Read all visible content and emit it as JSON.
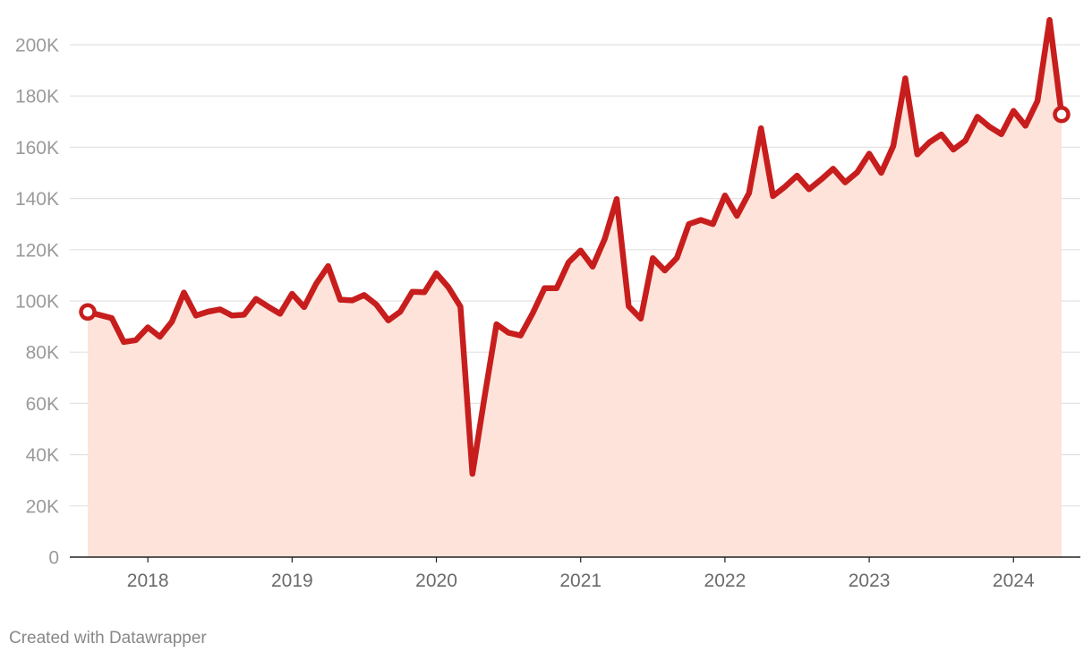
{
  "chart_data": {
    "type": "area",
    "title": "",
    "xlabel": "",
    "ylabel": "",
    "ylim": [
      0,
      200000
    ],
    "y_ticks": [
      {
        "value": 0,
        "label": "0"
      },
      {
        "value": 20000,
        "label": "20K"
      },
      {
        "value": 40000,
        "label": "40K"
      },
      {
        "value": 60000,
        "label": "60K"
      },
      {
        "value": 80000,
        "label": "80K"
      },
      {
        "value": 100000,
        "label": "100K"
      },
      {
        "value": 120000,
        "label": "120K"
      },
      {
        "value": 140000,
        "label": "140K"
      },
      {
        "value": 160000,
        "label": "160K"
      },
      {
        "value": 180000,
        "label": "180K"
      },
      {
        "value": 200000,
        "label": "200K"
      }
    ],
    "x_ticks": [
      {
        "value": "2018-01",
        "label": "2018"
      },
      {
        "value": "2019-01",
        "label": "2019"
      },
      {
        "value": "2020-01",
        "label": "2020"
      },
      {
        "value": "2021-01",
        "label": "2021"
      },
      {
        "value": "2022-01",
        "label": "2022"
      },
      {
        "value": "2023-01",
        "label": "2023"
      },
      {
        "value": "2024-01",
        "label": "2024"
      }
    ],
    "grid": true,
    "legend": "none",
    "colors": {
      "line": "#c71e1d",
      "fill": "#fde3da",
      "grid": "#e2e2e2",
      "axis": "#222222"
    },
    "series": [
      {
        "x": [
          "2017-08",
          "2017-09",
          "2017-10",
          "2017-11",
          "2017-12",
          "2018-01",
          "2018-02",
          "2018-03",
          "2018-04",
          "2018-05",
          "2018-06",
          "2018-07",
          "2018-08",
          "2018-09",
          "2018-10",
          "2018-11",
          "2018-12",
          "2019-01",
          "2019-02",
          "2019-03",
          "2019-04",
          "2019-05",
          "2019-06",
          "2019-07",
          "2019-08",
          "2019-09",
          "2019-10",
          "2019-11",
          "2019-12",
          "2020-01",
          "2020-02",
          "2020-03",
          "2020-04",
          "2020-05",
          "2020-06",
          "2020-07",
          "2020-08",
          "2020-09",
          "2020-10",
          "2020-11",
          "2020-12",
          "2021-01",
          "2021-02",
          "2021-03",
          "2021-04",
          "2021-05",
          "2021-06",
          "2021-07",
          "2021-08",
          "2021-09",
          "2021-10",
          "2021-11",
          "2021-12",
          "2022-01",
          "2022-02",
          "2022-03",
          "2022-04",
          "2022-05",
          "2022-06",
          "2022-07",
          "2022-08",
          "2022-09",
          "2022-10",
          "2022-11",
          "2022-12",
          "2023-01",
          "2023-02",
          "2023-03",
          "2023-04",
          "2023-05",
          "2023-06",
          "2023-07",
          "2023-08",
          "2023-09",
          "2023-10",
          "2023-11",
          "2023-12",
          "2024-01",
          "2024-02",
          "2024-03",
          "2024-04",
          "2024-05"
        ],
        "values": [
          95700,
          94500,
          93300,
          84000,
          84700,
          89700,
          86000,
          91900,
          103300,
          94300,
          95800,
          96700,
          94300,
          94600,
          100800,
          97800,
          95000,
          102800,
          97600,
          106700,
          113600,
          100500,
          100200,
          102300,
          98600,
          92400,
          95800,
          103600,
          103400,
          110800,
          105300,
          97800,
          32500,
          62400,
          90900,
          87600,
          86500,
          95100,
          105000,
          105000,
          115100,
          119700,
          113400,
          124200,
          139800,
          97900,
          93100,
          116700,
          111900,
          116800,
          130000,
          131600,
          130000,
          141200,
          133200,
          142100,
          167400,
          140900,
          144600,
          148900,
          143600,
          147400,
          151600,
          146300,
          150200,
          157500,
          150000,
          160500,
          186900,
          157200,
          161900,
          165000,
          159100,
          162600,
          171900,
          168000,
          165100,
          174200,
          168400,
          178100,
          209700,
          172800
        ]
      }
    ]
  },
  "footer": {
    "credit": "Created with Datawrapper"
  }
}
